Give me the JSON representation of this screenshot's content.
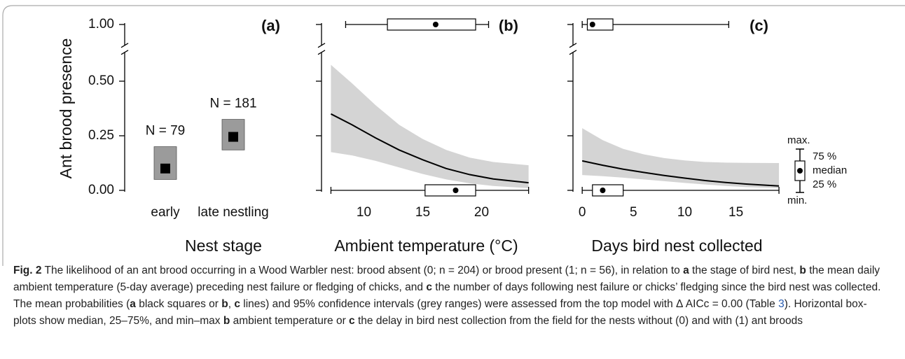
{
  "chart_data": [
    {
      "type": "point_range",
      "title": "(a)",
      "y_label": "Ant brood presence",
      "x_label": "Nest stage",
      "categories": [
        "early",
        "late nestling"
      ],
      "values": [
        0.1,
        0.245
      ],
      "ci_low": [
        0.05,
        0.185
      ],
      "ci_high": [
        0.2,
        0.325
      ],
      "annotations": [
        "N = 79",
        "N = 181"
      ],
      "color": "#000000",
      "ci_color": "#9b9b9b",
      "ylim": [
        0,
        1
      ],
      "y_break": [
        0.6,
        0.95
      ],
      "yticks": [
        {
          "value": 0,
          "label": "0.00"
        },
        {
          "value": 0.25,
          "label": "0.25"
        },
        {
          "value": 0.5,
          "label": "0.50"
        },
        {
          "value": 1,
          "label": "1.00"
        }
      ]
    },
    {
      "type": "curve",
      "title": "(b)",
      "x_label": "Ambient temperature (°C)",
      "x": [
        7.2,
        9,
        11,
        13,
        15,
        17,
        19,
        21,
        24
      ],
      "values": [
        0.35,
        0.3,
        0.24,
        0.185,
        0.14,
        0.1,
        0.072,
        0.052,
        0.035
      ],
      "ci_low": [
        0.175,
        0.16,
        0.135,
        0.105,
        0.075,
        0.05,
        0.032,
        0.02,
        0.01
      ],
      "ci_high": [
        0.575,
        0.49,
        0.39,
        0.3,
        0.235,
        0.185,
        0.15,
        0.13,
        0.115
      ],
      "color": "#000000",
      "ci_color": "#d4d4d4",
      "xlim": [
        6.4,
        24.2
      ],
      "xticks": [
        10,
        15,
        20
      ],
      "ylim": [
        0,
        1
      ],
      "y_break": [
        0.6,
        0.95
      ],
      "yticks": [
        0,
        0.25,
        0.5,
        1
      ],
      "boxplots": [
        {
          "at": 1,
          "min": 8.45,
          "q1": 12.0,
          "median": 16.1,
          "q3": 19.5,
          "max": 20.6
        },
        {
          "at": 0,
          "min": 7.2,
          "q1": 15.2,
          "median": 17.8,
          "q3": 19.5,
          "max": 24.0
        }
      ]
    },
    {
      "type": "curve",
      "title": "(c)",
      "x_label": "Days bird nest collected",
      "x": [
        0,
        2,
        4,
        6,
        8,
        10,
        12,
        14,
        16,
        19.2
      ],
      "values": [
        0.135,
        0.115,
        0.097,
        0.082,
        0.068,
        0.056,
        0.045,
        0.036,
        0.029,
        0.02
      ],
      "ci_low": [
        0.07,
        0.065,
        0.058,
        0.05,
        0.042,
        0.034,
        0.027,
        0.02,
        0.015,
        0.01
      ],
      "ci_high": [
        0.285,
        0.23,
        0.19,
        0.165,
        0.148,
        0.137,
        0.13,
        0.127,
        0.126,
        0.125
      ],
      "color": "#000000",
      "ci_color": "#d4d4d4",
      "xlim": [
        -0.9,
        19.4
      ],
      "xticks": [
        0,
        5,
        10,
        15
      ],
      "ylim": [
        0,
        1
      ],
      "y_break": [
        0.6,
        0.95
      ],
      "yticks": [
        0,
        0.25,
        0.5,
        1
      ],
      "boxplots": [
        {
          "at": 1,
          "min": 0,
          "q1": 0.5,
          "median": 1,
          "q3": 3,
          "max": 14.3
        },
        {
          "at": 0,
          "min": 0,
          "q1": 1,
          "median": 2,
          "q3": 4,
          "max": 19.2
        }
      ]
    }
  ],
  "legend": {
    "labels": [
      "max.",
      "75 %",
      "median",
      "25 %",
      "min."
    ]
  },
  "caption": {
    "label": "Fig. 2",
    "runs": [
      {
        "text": " The likelihood of an ant brood occurring in a Wood Warbler nest: brood absent (0; n = 204) or brood present (1; n = 56), in relation to "
      },
      {
        "text": "a",
        "style": "bold"
      },
      {
        "text": " the stage of bird nest, "
      },
      {
        "text": "b",
        "style": "bold"
      },
      {
        "text": " the mean daily ambient temperature (5-day average) preceding nest failure or fledging of chicks, and "
      },
      {
        "text": "c",
        "style": "bold"
      },
      {
        "text": " the number of days following nest failure or chicks’ fledging since the bird nest was collected. The mean probabilities ("
      },
      {
        "text": "a",
        "style": "bold"
      },
      {
        "text": " black squares or "
      },
      {
        "text": "b",
        "style": "bold"
      },
      {
        "text": ", "
      },
      {
        "text": "c",
        "style": "bold"
      },
      {
        "text": " lines) and 95% confidence intervals (grey ranges) were assessed from the top model with Δ AICc = 0.00 (Table "
      },
      {
        "text": "3",
        "style": "link"
      },
      {
        "text": "). Horizontal box-plots show median, 25–75%, and min–max "
      },
      {
        "text": "b",
        "style": "bold"
      },
      {
        "text": " ambient temperature or "
      },
      {
        "text": "c",
        "style": "bold"
      },
      {
        "text": " the delay in bird nest collection from the field for the nests without (0) and with (1) ant broods"
      }
    ]
  }
}
